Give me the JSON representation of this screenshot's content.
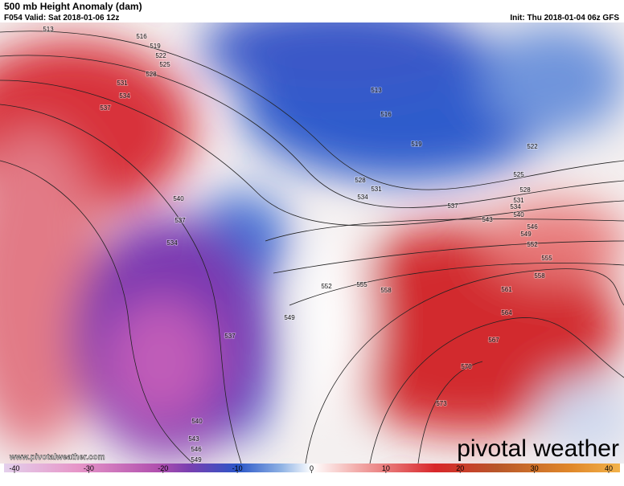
{
  "header": {
    "title": "500 mb Height Anomaly (dam)",
    "valid": "F054 Valid: Sat 2018-01-06 12z",
    "init": "Init: Thu 2018-01-04 06z GFS"
  },
  "contour_labels": [
    513,
    516,
    519,
    522,
    525,
    528,
    531,
    534,
    537,
    540,
    537,
    534,
    513,
    516,
    519,
    522,
    525,
    528,
    528,
    531,
    531,
    534,
    534,
    537,
    540,
    543,
    546,
    549,
    552,
    555,
    558,
    561,
    564,
    567,
    570,
    573,
    552,
    555,
    558,
    549,
    537,
    540,
    543,
    546,
    549
  ],
  "colorbar": {
    "ticks": [
      -40,
      -30,
      -20,
      -10,
      0,
      10,
      20,
      30,
      40
    ]
  },
  "watermark": {
    "url": "www.pivotalweather.com",
    "brand": "pivotal weather"
  }
}
